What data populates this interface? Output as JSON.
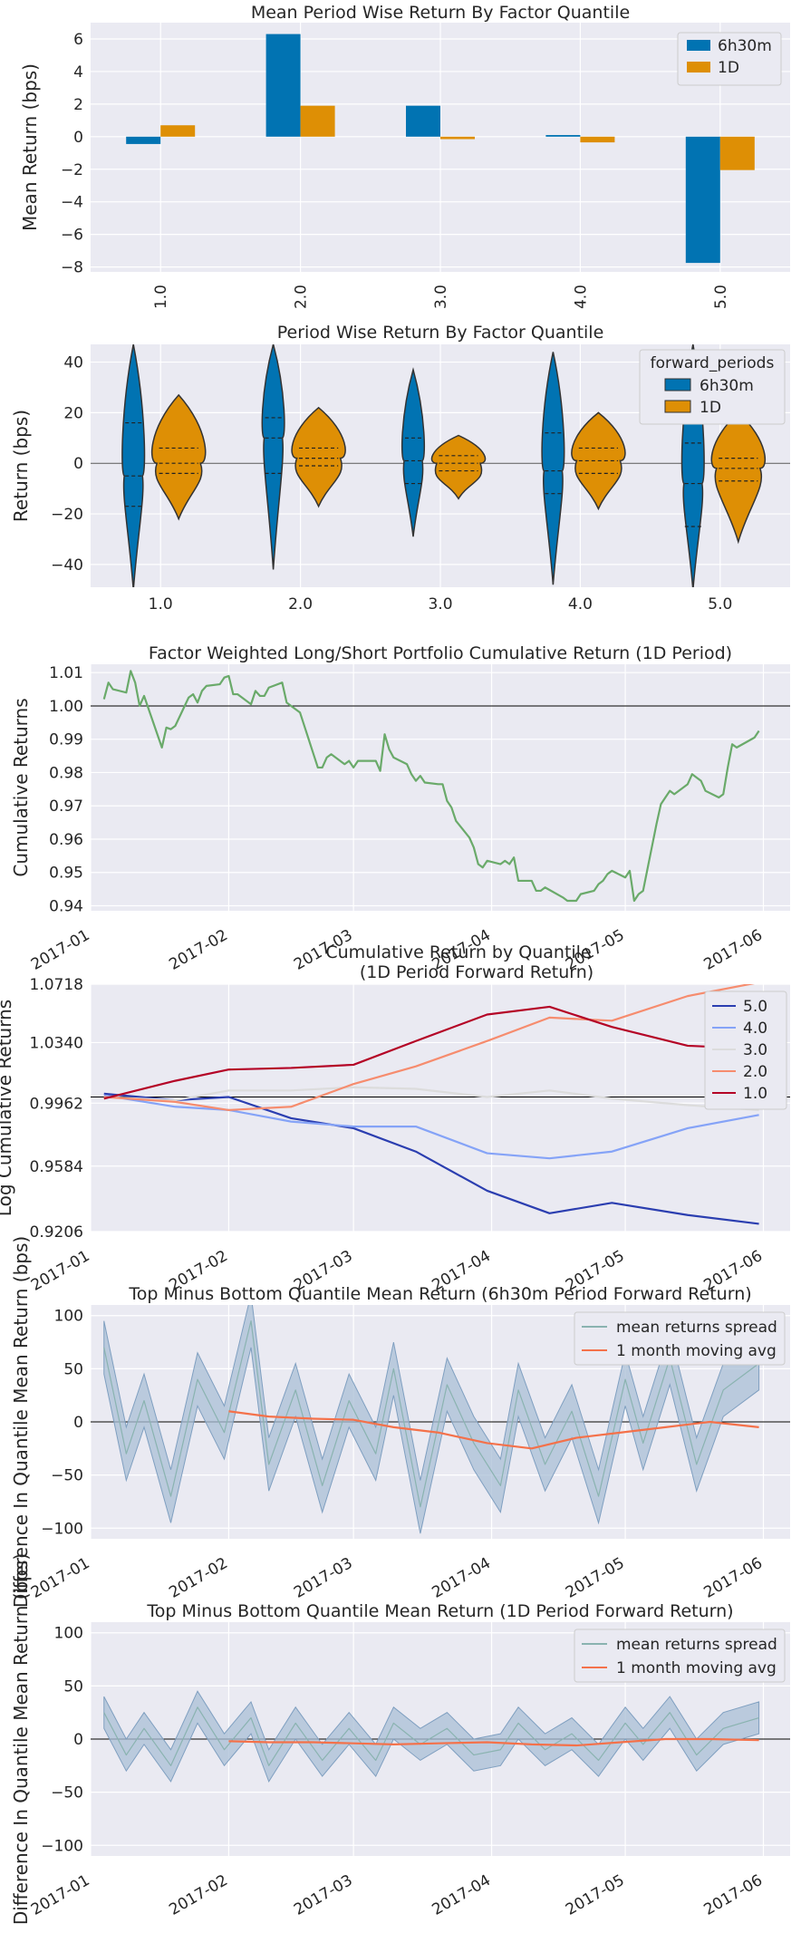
{
  "colors": {
    "background": "#eaeaf2",
    "grid": "#ffffff",
    "blue": "#0173b2",
    "orange": "#de8f05",
    "green": "#6aaa6a",
    "spread_fill": "#a9bfd6",
    "spread_line": "#8ab3b0",
    "moving_avg": "#f4714a",
    "q5": "#2b3eb0",
    "q4": "#85a3f7",
    "q3": "#dcdcdc",
    "q2": "#f68c6e",
    "q1": "#b40426"
  },
  "chart_data": [
    {
      "type": "bar",
      "title": "Mean Period Wise Return By Factor Quantile",
      "xlabel": "",
      "ylabel": "Mean Return (bps)",
      "categories": [
        "1.0",
        "2.0",
        "3.0",
        "4.0",
        "5.0"
      ],
      "series": [
        {
          "name": "6h30m",
          "values": [
            -0.45,
            6.3,
            1.9,
            0.1,
            -7.75
          ]
        },
        {
          "name": "1D",
          "values": [
            0.7,
            1.9,
            -0.15,
            -0.35,
            -2.05
          ]
        }
      ],
      "yticks": [
        -8,
        -6,
        -4,
        -2,
        0,
        2,
        4,
        6
      ],
      "ytick_labels": [
        "−8",
        "−6",
        "−4",
        "−2",
        "0",
        "2",
        "4",
        "6"
      ],
      "ylim": [
        -8.3,
        7.0
      ],
      "legend": "top-right"
    },
    {
      "type": "violin",
      "title": "Period Wise Return By Factor Quantile",
      "xlabel": "",
      "ylabel": "Return (bps)",
      "legend_title": "forward_periods",
      "categories": [
        "1.0",
        "2.0",
        "3.0",
        "4.0",
        "5.0"
      ],
      "series": [
        {
          "name": "6h30m",
          "min": [
            -50,
            -42,
            -29,
            -48,
            -50
          ],
          "max": [
            47,
            47,
            37,
            44,
            47
          ],
          "q1": [
            -17,
            -4,
            -8,
            -12,
            -25
          ],
          "median": [
            -5,
            10,
            1,
            -3,
            -8
          ],
          "q3": [
            16,
            18,
            10,
            12,
            8
          ]
        },
        {
          "name": "1D",
          "min": [
            -22,
            -17,
            -14,
            -18,
            -31
          ],
          "max": [
            27,
            22,
            11,
            20,
            20
          ],
          "q1": [
            -4,
            -1,
            -3,
            -4,
            -7
          ],
          "median": [
            0,
            2,
            0,
            1,
            -2
          ],
          "q3": [
            6,
            6,
            3,
            6,
            2
          ]
        }
      ],
      "yticks": [
        -40,
        -20,
        0,
        20,
        40
      ],
      "ytick_labels": [
        "−40",
        "−20",
        "0",
        "20",
        "40"
      ],
      "ylim": [
        -49,
        47
      ],
      "legend": "top-right"
    },
    {
      "type": "line",
      "title": "Factor Weighted Long/Short Portfolio Cumulative Return (1D Period)",
      "xlabel": "",
      "ylabel": "Cumulative Returns",
      "xlim": [
        "2017-01-01",
        "2017-06-07"
      ],
      "xticks": [
        "2017-01-01",
        "2017-02-01",
        "2017-03-01",
        "2017-04-01",
        "2017-05-01",
        "2017-06-01"
      ],
      "xtick_labels": [
        "2017-01",
        "2017-02",
        "2017-03",
        "2017-04",
        "2017-05",
        "2017-06"
      ],
      "yticks": [
        0.94,
        0.95,
        0.96,
        0.97,
        0.98,
        0.99,
        1.0,
        1.01
      ],
      "ytick_labels": [
        "0.94",
        "0.95",
        "0.96",
        "0.97",
        "0.98",
        "0.99",
        "1.00",
        "1.01"
      ],
      "ylim": [
        0.9385,
        1.0125
      ],
      "hline": 1.0,
      "series": [
        {
          "name": "",
          "x": [
            "2017-01-04",
            "2017-01-05",
            "2017-01-06",
            "2017-01-09",
            "2017-01-10",
            "2017-01-11",
            "2017-01-12",
            "2017-01-13",
            "2017-01-17",
            "2017-01-18",
            "2017-01-19",
            "2017-01-20",
            "2017-01-23",
            "2017-01-24",
            "2017-01-25",
            "2017-01-26",
            "2017-01-27",
            "2017-01-30",
            "2017-01-31",
            "2017-02-01",
            "2017-02-02",
            "2017-02-03",
            "2017-02-06",
            "2017-02-07",
            "2017-02-08",
            "2017-02-09",
            "2017-02-10",
            "2017-02-13",
            "2017-02-14",
            "2017-02-15",
            "2017-02-16",
            "2017-02-17",
            "2017-02-21",
            "2017-02-22",
            "2017-02-23",
            "2017-02-24",
            "2017-02-27",
            "2017-02-28",
            "2017-03-01",
            "2017-03-02",
            "2017-03-03",
            "2017-03-06",
            "2017-03-07",
            "2017-03-08",
            "2017-03-09",
            "2017-03-10",
            "2017-03-13",
            "2017-03-14",
            "2017-03-15",
            "2017-03-16",
            "2017-03-17",
            "2017-03-20",
            "2017-03-21",
            "2017-03-22",
            "2017-03-23",
            "2017-03-24",
            "2017-03-27",
            "2017-03-28",
            "2017-03-29",
            "2017-03-30",
            "2017-03-31",
            "2017-04-03",
            "2017-04-04",
            "2017-04-05",
            "2017-04-06",
            "2017-04-07",
            "2017-04-10",
            "2017-04-11",
            "2017-04-12",
            "2017-04-13",
            "2017-04-17",
            "2017-04-18",
            "2017-04-19",
            "2017-04-20",
            "2017-04-21",
            "2017-04-24",
            "2017-04-25",
            "2017-04-26",
            "2017-04-27",
            "2017-04-28",
            "2017-05-01",
            "2017-05-02",
            "2017-05-03",
            "2017-05-04",
            "2017-05-05",
            "2017-05-08",
            "2017-05-09",
            "2017-05-10",
            "2017-05-11",
            "2017-05-12",
            "2017-05-15",
            "2017-05-16",
            "2017-05-17",
            "2017-05-18",
            "2017-05-19",
            "2017-05-22",
            "2017-05-23",
            "2017-05-24",
            "2017-05-25",
            "2017-05-26",
            "2017-05-30",
            "2017-05-31"
          ],
          "y": [
            1.002,
            1.007,
            1.005,
            1.004,
            1.0105,
            1.007,
            1.0,
            1.003,
            0.9875,
            0.9935,
            0.993,
            0.994,
            1.0025,
            1.0035,
            1.001,
            1.0045,
            1.006,
            1.0065,
            1.0085,
            1.009,
            1.0035,
            1.0035,
            1.0005,
            1.0045,
            1.003,
            1.003,
            1.0055,
            1.007,
            1.001,
            1.0,
            0.999,
            0.998,
            0.9815,
            0.9815,
            0.9845,
            0.9855,
            0.9825,
            0.9835,
            0.9815,
            0.9835,
            0.9835,
            0.9835,
            0.9805,
            0.9915,
            0.987,
            0.9845,
            0.9825,
            0.9795,
            0.9775,
            0.979,
            0.977,
            0.9765,
            0.9765,
            0.9715,
            0.9695,
            0.9655,
            0.9605,
            0.9575,
            0.9525,
            0.9515,
            0.9535,
            0.9525,
            0.9535,
            0.9525,
            0.9545,
            0.9475,
            0.9475,
            0.9445,
            0.9445,
            0.9455,
            0.9425,
            0.9415,
            0.9415,
            0.9415,
            0.9435,
            0.9445,
            0.9465,
            0.9475,
            0.9495,
            0.9505,
            0.9485,
            0.9505,
            0.9415,
            0.9435,
            0.9445,
            0.9645,
            0.9705,
            0.9725,
            0.9745,
            0.9735,
            0.9765,
            0.9795,
            0.9785,
            0.9775,
            0.9745,
            0.9725,
            0.9735,
            0.9815,
            0.9885,
            0.9875,
            0.9905,
            0.9925
          ]
        }
      ]
    },
    {
      "type": "line",
      "title": "Cumulative Return by Quantile",
      "subtitle": "(1D Period Forward Return)",
      "xlabel": "",
      "ylabel": "Log Cumulative Returns",
      "xlim": [
        "2017-01-01",
        "2017-06-07"
      ],
      "xticks": [
        "2017-01-01",
        "2017-02-01",
        "2017-03-01",
        "2017-04-01",
        "2017-05-01",
        "2017-06-01"
      ],
      "xtick_labels": [
        "2017-01",
        "2017-02",
        "2017-03",
        "2017-04",
        "2017-05",
        "2017-06"
      ],
      "yticks": [
        0.9206,
        0.9584,
        0.9962,
        1.034,
        1.0718
      ],
      "ytick_labels": [
        "0.9206",
        "0.9584",
        "0.9962",
        "1.0340",
        "1.0718"
      ],
      "ylim": [
        0.9206,
        1.0718
      ],
      "log_scale": true,
      "hline": 1.0,
      "legend": "top-right",
      "series": [
        {
          "name": "5.0",
          "color_key": "q5",
          "x": [
            "2017-01-04",
            "2017-01-20",
            "2017-02-01",
            "2017-02-15",
            "2017-03-01",
            "2017-03-15",
            "2017-03-31",
            "2017-04-14",
            "2017-04-28",
            "2017-05-15",
            "2017-05-31"
          ],
          "y": [
            1.002,
            0.998,
            1.0,
            0.987,
            0.981,
            0.967,
            0.944,
            0.931,
            0.937,
            0.93,
            0.925
          ]
        },
        {
          "name": "4.0",
          "color_key": "q4",
          "x": [
            "2017-01-04",
            "2017-01-20",
            "2017-02-01",
            "2017-02-15",
            "2017-03-01",
            "2017-03-15",
            "2017-03-31",
            "2017-04-14",
            "2017-04-28",
            "2017-05-15",
            "2017-05-31"
          ],
          "y": [
            1.001,
            0.994,
            0.992,
            0.985,
            0.982,
            0.982,
            0.966,
            0.963,
            0.967,
            0.981,
            0.989
          ]
        },
        {
          "name": "3.0",
          "color_key": "q3",
          "x": [
            "2017-01-04",
            "2017-01-20",
            "2017-02-01",
            "2017-02-15",
            "2017-03-01",
            "2017-03-15",
            "2017-03-31",
            "2017-04-14",
            "2017-04-28",
            "2017-05-15",
            "2017-05-31"
          ],
          "y": [
            1.0,
            0.998,
            1.004,
            1.004,
            1.006,
            1.005,
            1.0,
            1.004,
            0.999,
            0.995,
            0.992
          ]
        },
        {
          "name": "2.0",
          "color_key": "q2",
          "x": [
            "2017-01-04",
            "2017-01-20",
            "2017-02-01",
            "2017-02-15",
            "2017-03-01",
            "2017-03-15",
            "2017-03-31",
            "2017-04-14",
            "2017-04-28",
            "2017-05-15",
            "2017-05-31"
          ],
          "y": [
            1.0,
            0.997,
            0.992,
            0.994,
            1.008,
            1.019,
            1.035,
            1.05,
            1.048,
            1.064,
            1.073
          ]
        },
        {
          "name": "1.0",
          "color_key": "q1",
          "x": [
            "2017-01-04",
            "2017-01-20",
            "2017-02-01",
            "2017-02-15",
            "2017-03-01",
            "2017-03-15",
            "2017-03-31",
            "2017-04-14",
            "2017-04-28",
            "2017-05-15",
            "2017-05-31"
          ],
          "y": [
            0.999,
            1.01,
            1.017,
            1.018,
            1.02,
            1.035,
            1.052,
            1.057,
            1.044,
            1.032,
            1.03
          ]
        }
      ]
    },
    {
      "type": "line",
      "title": "Top Minus Bottom Quantile Mean Return (6h30m Period Forward Return)",
      "xlabel": "",
      "ylabel": "Difference In Quantile Mean Return (bps)",
      "xlim": [
        "2017-01-01",
        "2017-06-07"
      ],
      "xticks": [
        "2017-01-01",
        "2017-02-01",
        "2017-03-01",
        "2017-04-01",
        "2017-05-01",
        "2017-06-01"
      ],
      "xtick_labels": [
        "2017-01",
        "2017-02",
        "2017-03",
        "2017-04",
        "2017-05",
        "2017-06"
      ],
      "yticks": [
        -100,
        -50,
        0,
        50,
        100
      ],
      "ytick_labels": [
        "−100",
        "−50",
        "0",
        "50",
        "100"
      ],
      "ylim": [
        -110,
        110
      ],
      "hline": 0,
      "legend": "top-right",
      "series": [
        {
          "name": "mean returns spread",
          "color_key": "spread_line",
          "band": 25,
          "x": [
            "2017-01-04",
            "2017-01-09",
            "2017-01-13",
            "2017-01-19",
            "2017-01-25",
            "2017-01-31",
            "2017-02-06",
            "2017-02-10",
            "2017-02-16",
            "2017-02-22",
            "2017-02-28",
            "2017-03-06",
            "2017-03-10",
            "2017-03-16",
            "2017-03-22",
            "2017-03-28",
            "2017-04-03",
            "2017-04-07",
            "2017-04-13",
            "2017-04-19",
            "2017-04-25",
            "2017-05-01",
            "2017-05-05",
            "2017-05-11",
            "2017-05-17",
            "2017-05-23",
            "2017-05-31"
          ],
          "y": [
            70,
            -30,
            20,
            -70,
            40,
            -10,
            95,
            -40,
            30,
            -60,
            20,
            -30,
            50,
            -80,
            35,
            -20,
            -60,
            30,
            -40,
            10,
            -70,
            40,
            -20,
            60,
            -40,
            30,
            55
          ]
        },
        {
          "name": "1 month moving avg",
          "color_key": "moving_avg",
          "x": [
            "2017-02-01",
            "2017-02-10",
            "2017-02-20",
            "2017-03-01",
            "2017-03-10",
            "2017-03-20",
            "2017-03-31",
            "2017-04-10",
            "2017-04-20",
            "2017-04-30",
            "2017-05-10",
            "2017-05-20",
            "2017-05-31"
          ],
          "y": [
            10,
            5,
            3,
            2,
            -5,
            -10,
            -20,
            -25,
            -15,
            -10,
            -5,
            0,
            -5
          ]
        }
      ]
    },
    {
      "type": "line",
      "title": "Top Minus Bottom Quantile Mean Return (1D Period Forward Return)",
      "xlabel": "",
      "ylabel": "Difference In Quantile Mean Return (bps)",
      "xlim": [
        "2017-01-01",
        "2017-06-07"
      ],
      "xticks": [
        "2017-01-01",
        "2017-02-01",
        "2017-03-01",
        "2017-04-01",
        "2017-05-01",
        "2017-06-01"
      ],
      "xtick_labels": [
        "2017-01",
        "2017-02",
        "2017-03",
        "2017-04",
        "2017-05",
        "2017-06"
      ],
      "yticks": [
        -100,
        -50,
        0,
        50,
        100
      ],
      "ytick_labels": [
        "−100",
        "−50",
        "0",
        "50",
        "100"
      ],
      "ylim": [
        -110,
        110
      ],
      "hline": 0,
      "legend": "top-right",
      "series": [
        {
          "name": "mean returns spread",
          "color_key": "spread_line",
          "band": 15,
          "x": [
            "2017-01-04",
            "2017-01-09",
            "2017-01-13",
            "2017-01-19",
            "2017-01-25",
            "2017-01-31",
            "2017-02-06",
            "2017-02-10",
            "2017-02-16",
            "2017-02-22",
            "2017-02-28",
            "2017-03-06",
            "2017-03-10",
            "2017-03-16",
            "2017-03-22",
            "2017-03-28",
            "2017-04-03",
            "2017-04-07",
            "2017-04-13",
            "2017-04-19",
            "2017-04-25",
            "2017-05-01",
            "2017-05-05",
            "2017-05-11",
            "2017-05-17",
            "2017-05-23",
            "2017-05-31"
          ],
          "y": [
            25,
            -15,
            10,
            -25,
            30,
            -10,
            20,
            -25,
            15,
            -20,
            10,
            -20,
            15,
            -5,
            10,
            -15,
            -10,
            15,
            -10,
            5,
            -20,
            15,
            -5,
            25,
            -15,
            10,
            20
          ]
        },
        {
          "name": "1 month moving avg",
          "color_key": "moving_avg",
          "x": [
            "2017-02-01",
            "2017-02-10",
            "2017-02-20",
            "2017-03-01",
            "2017-03-10",
            "2017-03-20",
            "2017-03-31",
            "2017-04-10",
            "2017-04-20",
            "2017-04-30",
            "2017-05-10",
            "2017-05-20",
            "2017-05-31"
          ],
          "y": [
            -2,
            -3,
            -3,
            -4,
            -5,
            -4,
            -3,
            -5,
            -6,
            -3,
            0,
            0,
            -1
          ]
        }
      ]
    }
  ]
}
